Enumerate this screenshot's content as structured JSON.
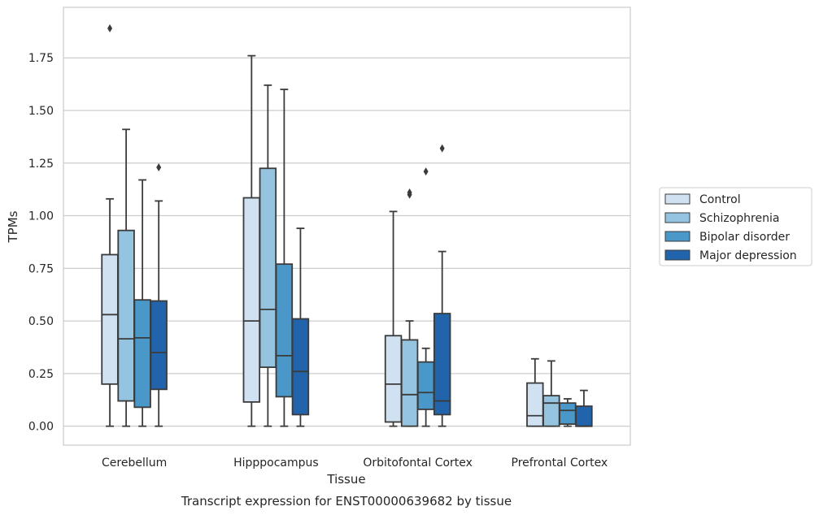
{
  "chart_data": {
    "type": "box",
    "title": "",
    "caption": "Transcript expression for ENST00000639682 by tissue",
    "xlabel": "Tissue",
    "ylabel": "TPMs",
    "ylim": [
      -0.09,
      1.99
    ],
    "yticks": [
      0.0,
      0.25,
      0.5,
      0.75,
      1.0,
      1.25,
      1.5,
      1.75
    ],
    "ytick_labels": [
      "0.00",
      "0.25",
      "0.50",
      "0.75",
      "1.00",
      "1.25",
      "1.50",
      "1.75"
    ],
    "grid": "horizontal",
    "legend_position": "right",
    "categories": [
      "Cerebellum",
      "Hipppocampus",
      "Orbitofontal Cortex",
      "Prefrontal Cortex"
    ],
    "series": [
      {
        "name": "Control",
        "color": "#d0e1f2",
        "boxes": [
          {
            "whislo": 0.0,
            "q1": 0.2,
            "med": 0.53,
            "q3": 0.815,
            "whishi": 1.08,
            "fliers": [
              1.89
            ]
          },
          {
            "whislo": 0.0,
            "q1": 0.115,
            "med": 0.5,
            "q3": 1.085,
            "whishi": 1.76,
            "fliers": []
          },
          {
            "whislo": 0.0,
            "q1": 0.02,
            "med": 0.2,
            "q3": 0.43,
            "whishi": 1.02,
            "fliers": []
          },
          {
            "whislo": 0.0,
            "q1": 0.0,
            "med": 0.05,
            "q3": 0.205,
            "whishi": 0.32,
            "fliers": []
          }
        ]
      },
      {
        "name": "Schizophrenia",
        "color": "#94c4df",
        "boxes": [
          {
            "whislo": 0.0,
            "q1": 0.12,
            "med": 0.415,
            "q3": 0.93,
            "whishi": 1.41,
            "fliers": []
          },
          {
            "whislo": 0.0,
            "q1": 0.28,
            "med": 0.555,
            "q3": 1.225,
            "whishi": 1.62,
            "fliers": []
          },
          {
            "whislo": 0.0,
            "q1": 0.0,
            "med": 0.15,
            "q3": 0.41,
            "whishi": 0.5,
            "fliers": [
              1.1,
              1.11
            ]
          },
          {
            "whislo": 0.0,
            "q1": 0.0,
            "med": 0.11,
            "q3": 0.145,
            "whishi": 0.31,
            "fliers": []
          }
        ]
      },
      {
        "name": "Bipolar disorder",
        "color": "#4a98c9",
        "boxes": [
          {
            "whislo": 0.0,
            "q1": 0.09,
            "med": 0.42,
            "q3": 0.6,
            "whishi": 1.17,
            "fliers": []
          },
          {
            "whislo": 0.0,
            "q1": 0.14,
            "med": 0.335,
            "q3": 0.77,
            "whishi": 1.6,
            "fliers": []
          },
          {
            "whislo": 0.0,
            "q1": 0.08,
            "med": 0.16,
            "q3": 0.305,
            "whishi": 0.37,
            "fliers": [
              1.21
            ]
          },
          {
            "whislo": 0.0,
            "q1": 0.01,
            "med": 0.075,
            "q3": 0.11,
            "whishi": 0.13,
            "fliers": []
          }
        ]
      },
      {
        "name": "Major depression",
        "color": "#2164ab",
        "boxes": [
          {
            "whislo": 0.0,
            "q1": 0.175,
            "med": 0.35,
            "q3": 0.595,
            "whishi": 1.07,
            "fliers": [
              1.23
            ]
          },
          {
            "whislo": 0.0,
            "q1": 0.055,
            "med": 0.26,
            "q3": 0.51,
            "whishi": 0.94,
            "fliers": []
          },
          {
            "whislo": 0.0,
            "q1": 0.055,
            "med": 0.12,
            "q3": 0.535,
            "whishi": 0.83,
            "fliers": [
              1.32
            ]
          },
          {
            "whislo": 0.0,
            "q1": 0.0,
            "med": 0.0,
            "q3": 0.095,
            "whishi": 0.17,
            "fliers": []
          }
        ]
      }
    ]
  }
}
